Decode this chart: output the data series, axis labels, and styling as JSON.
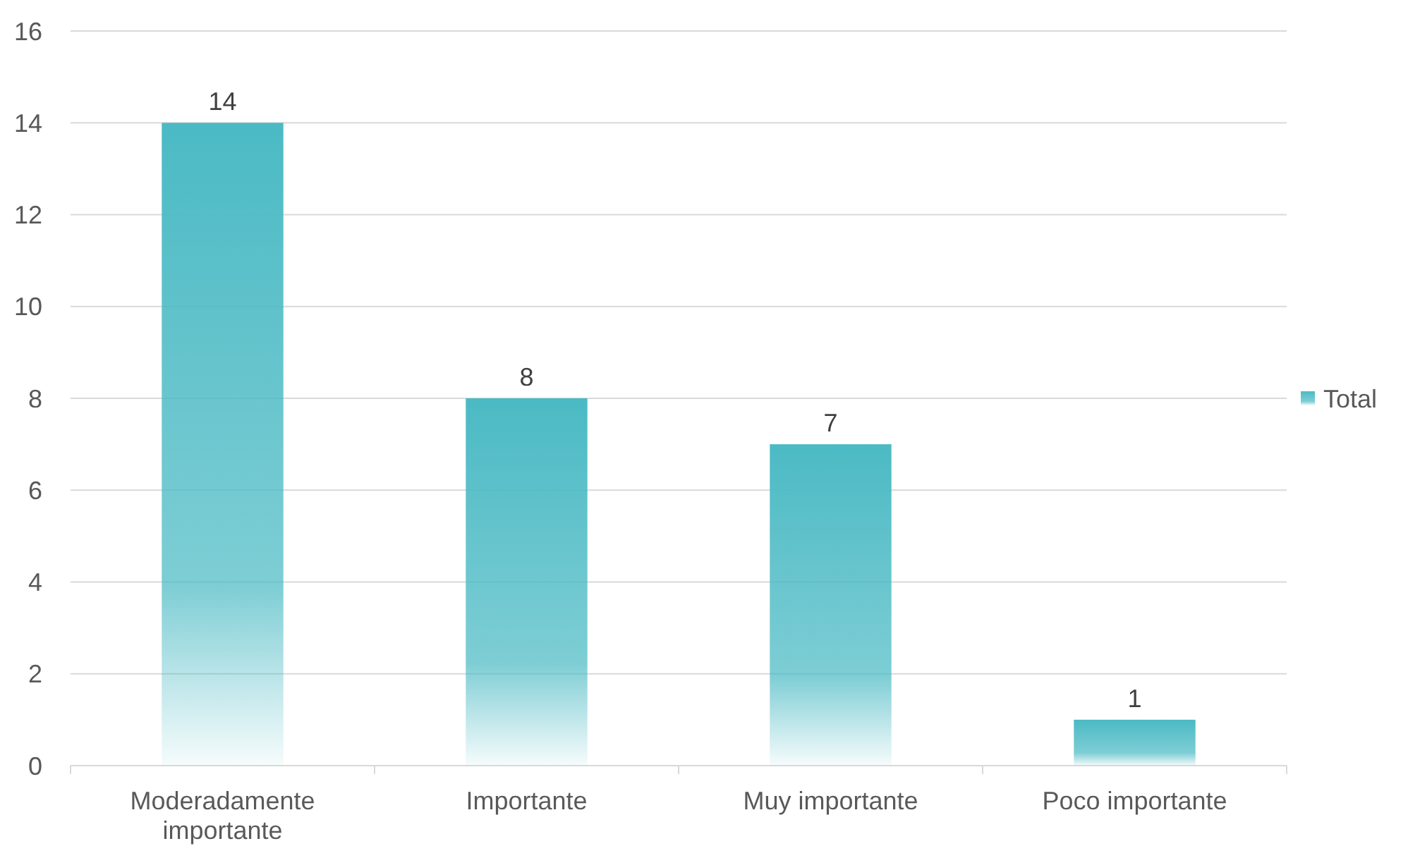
{
  "chart_data": {
    "type": "bar",
    "categories": [
      "Moderadamente importante",
      "Importante",
      "Muy importante",
      "Poco importante"
    ],
    "series": [
      {
        "name": "Total",
        "color": "#4bbac4",
        "values": [
          14,
          8,
          7,
          1
        ]
      }
    ],
    "ylim": [
      0,
      16
    ],
    "yticks": [
      0,
      2,
      4,
      6,
      8,
      10,
      12,
      14,
      16
    ],
    "grid": "y",
    "legend": "right",
    "data_labels": true
  }
}
